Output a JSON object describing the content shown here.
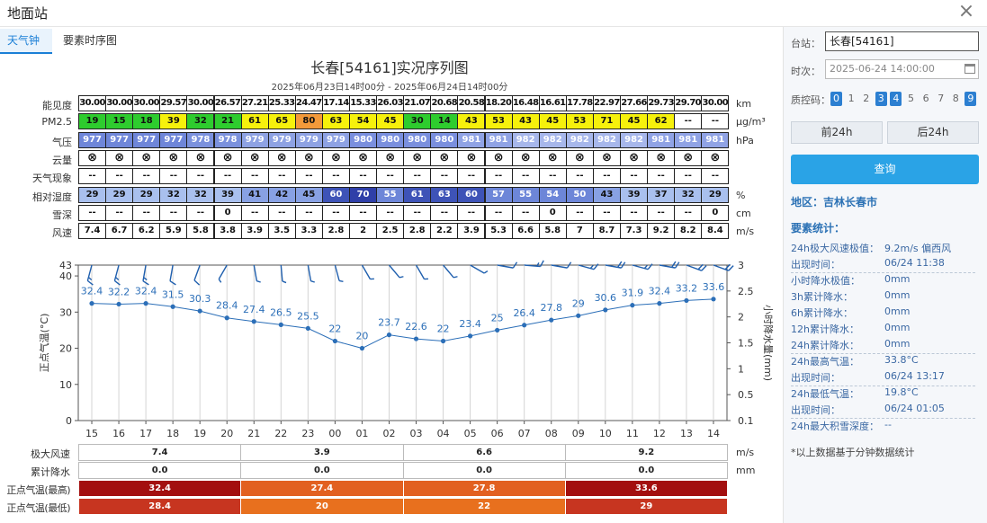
{
  "window": {
    "title": "地面站",
    "close_label": "×"
  },
  "tabs": [
    {
      "label": "天气钟",
      "active": true
    },
    {
      "label": "要素时序图",
      "active": false
    }
  ],
  "chart_title": "长春[54161]实况序列图",
  "chart_subtitle": "2025年06月23日14时00分 - 2025年06月24日14时00分",
  "rows": [
    {
      "key": "visibility",
      "label": "能见度",
      "unit": "km",
      "values": [
        "30.00",
        "30.00",
        "30.00",
        "29.57",
        "30.00",
        "26.57",
        "27.21",
        "25.33",
        "24.47",
        "17.14",
        "15.33",
        "26.03",
        "21.07",
        "20.68",
        "20.58",
        "18.20",
        "16.48",
        "16.61",
        "17.78",
        "22.97",
        "27.66",
        "29.73",
        "29.70",
        "30.00"
      ]
    },
    {
      "key": "pm25",
      "label": "PM2.5",
      "unit": "μg/m³",
      "values": [
        "19",
        "15",
        "18",
        "39",
        "32",
        "21",
        "61",
        "65",
        "80",
        "63",
        "54",
        "45",
        "30",
        "14",
        "43",
        "53",
        "43",
        "45",
        "53",
        "71",
        "45",
        "62",
        "--",
        "--"
      ]
    },
    {
      "key": "pressure",
      "label": "气压",
      "unit": "hPa",
      "values": [
        "977",
        "977",
        "977",
        "977",
        "978",
        "978",
        "979",
        "979",
        "979",
        "979",
        "980",
        "980",
        "980",
        "980",
        "981",
        "981",
        "982",
        "982",
        "982",
        "982",
        "982",
        "981",
        "981",
        "981"
      ]
    },
    {
      "key": "cloud",
      "label": "云量",
      "unit": "",
      "values": [
        "⊗",
        "⊗",
        "⊗",
        "⊗",
        "⊗",
        "⊗",
        "⊗",
        "⊗",
        "⊗",
        "⊗",
        "⊗",
        "⊗",
        "⊗",
        "⊗",
        "⊗",
        "⊗",
        "⊗",
        "⊗",
        "⊗",
        "⊗",
        "⊗",
        "⊗",
        "⊗",
        "⊗"
      ]
    },
    {
      "key": "weather",
      "label": "天气现象",
      "unit": "",
      "values": [
        "--",
        "--",
        "--",
        "--",
        "--",
        "--",
        "--",
        "--",
        "--",
        "--",
        "--",
        "--",
        "--",
        "--",
        "--",
        "--",
        "--",
        "--",
        "--",
        "--",
        "--",
        "--",
        "--",
        "--"
      ]
    },
    {
      "key": "humidity",
      "label": "相对湿度",
      "unit": "%",
      "values": [
        "29",
        "29",
        "29",
        "32",
        "32",
        "39",
        "41",
        "42",
        "45",
        "60",
        "70",
        "55",
        "61",
        "63",
        "60",
        "57",
        "55",
        "54",
        "50",
        "43",
        "39",
        "37",
        "32",
        "29"
      ]
    },
    {
      "key": "snow",
      "label": "雪深",
      "unit": "cm",
      "values": [
        "--",
        "--",
        "--",
        "--",
        "--",
        "0",
        "--",
        "--",
        "--",
        "--",
        "--",
        "--",
        "--",
        "--",
        "--",
        "--",
        "--",
        "0",
        "--",
        "--",
        "--",
        "--",
        "--",
        "0"
      ]
    },
    {
      "key": "wind",
      "label": "风速",
      "unit": "m/s",
      "values": [
        "7.4",
        "6.7",
        "6.2",
        "5.9",
        "5.8",
        "3.8",
        "3.9",
        "3.5",
        "3.3",
        "2.8",
        "2",
        "2.5",
        "2.8",
        "2.2",
        "3.9",
        "5.3",
        "6.6",
        "5.8",
        "7",
        "8.7",
        "7.3",
        "9.2",
        "8.2",
        "8.4"
      ]
    }
  ],
  "chart_data": {
    "type": "line",
    "x": [
      "15",
      "16",
      "17",
      "18",
      "19",
      "20",
      "21",
      "22",
      "23",
      "00",
      "01",
      "02",
      "03",
      "04",
      "05",
      "06",
      "07",
      "08",
      "09",
      "10",
      "11",
      "12",
      "13",
      "14"
    ],
    "series": [
      {
        "values": [
          32.4,
          32.2,
          32.4,
          31.5,
          30.3,
          28.4,
          27.4,
          26.5,
          25.5,
          22,
          20,
          23.7,
          22.6,
          22,
          23.4,
          25,
          26.4,
          27.8,
          29,
          30.6,
          31.9,
          32.4,
          33.2,
          33.6
        ]
      }
    ],
    "ylabel": "正点气温(°C)",
    "ylim": [
      0,
      43
    ],
    "yticks": [
      0,
      10,
      20,
      30,
      40,
      43
    ],
    "y2label": "小时降水量(mm)",
    "y2ticks": [
      "0.1",
      "0.5",
      "1",
      "1.5",
      "2",
      "2.5",
      "3"
    ],
    "grid": "vertical",
    "wind_barbs": true,
    "line_color": "#2c6fb8"
  },
  "summary": {
    "rows": [
      {
        "label": "极大风速",
        "unit": "m/s",
        "values": [
          "7.4",
          "3.9",
          "6.6",
          "9.2"
        ]
      },
      {
        "label": "累计降水",
        "unit": "mm",
        "values": [
          "0.0",
          "0.0",
          "0.0",
          "0.0"
        ]
      },
      {
        "label": "正点气温(最高)",
        "unit": "",
        "values": [
          "32.4",
          "27.4",
          "27.8",
          "33.6"
        ]
      },
      {
        "label": "正点气温(最低)",
        "unit": "",
        "values": [
          "28.4",
          "20",
          "22",
          "29"
        ]
      }
    ]
  },
  "side": {
    "station_label": "台站：",
    "station_value": "长春[54161]",
    "time_label": "时次：",
    "time_value": "2025-06-24 14:00:00",
    "qc_label": "质控码：",
    "qc_codes": [
      {
        "code": "0",
        "active": true
      },
      {
        "code": "1",
        "active": false
      },
      {
        "code": "2",
        "active": false
      },
      {
        "code": "3",
        "active": true
      },
      {
        "code": "4",
        "active": true
      },
      {
        "code": "5",
        "active": false
      },
      {
        "code": "6",
        "active": false
      },
      {
        "code": "7",
        "active": false
      },
      {
        "code": "8",
        "active": false
      },
      {
        "code": "9",
        "active": true
      }
    ],
    "prev_label": "前24h",
    "next_label": "后24h",
    "query_label": "查询",
    "region": "地区：吉林长春市",
    "stats_title": "要素统计：",
    "stats": [
      {
        "label": "24h极大风速极值：",
        "value": "9.2m/s 偏西风",
        "sep": false
      },
      {
        "label": "出现时间：",
        "value": "06/24 11:38",
        "sep": true
      },
      {
        "label": "小时降水极值：",
        "value": "0mm",
        "sep": false
      },
      {
        "label": "3h累计降水：",
        "value": "0mm",
        "sep": false
      },
      {
        "label": "6h累计降水：",
        "value": "0mm",
        "sep": false
      },
      {
        "label": "12h累计降水：",
        "value": "0mm",
        "sep": false
      },
      {
        "label": "24h累计降水：",
        "value": "0mm",
        "sep": true
      },
      {
        "label": "24h最高气温：",
        "value": "33.8°C",
        "sep": false
      },
      {
        "label": "出现时间：",
        "value": "06/24 13:17",
        "sep": true
      },
      {
        "label": "24h最低气温：",
        "value": "19.8°C",
        "sep": false
      },
      {
        "label": "出现时间：",
        "value": "06/24 01:05",
        "sep": true
      },
      {
        "label": "24h最大积雪深度：",
        "value": "--",
        "sep": false
      }
    ],
    "footnote": "*以上数据基于分钟数据统计"
  }
}
